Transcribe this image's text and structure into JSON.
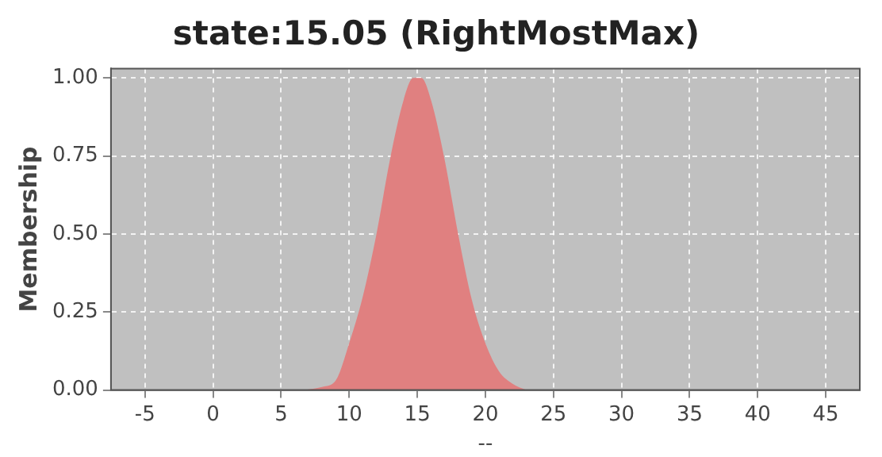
{
  "chart_data": {
    "type": "area",
    "title": "state:15.05 (RightMostMax)",
    "xlabel": "--",
    "ylabel": "Membership",
    "x": [
      6.7,
      8,
      9,
      10,
      11,
      12,
      13,
      14,
      14.7,
      15.3,
      16,
      17,
      18,
      19,
      20,
      21,
      22,
      23
    ],
    "series": [
      {
        "color": "#e08080",
        "values": [
          0,
          0.01,
          0.03,
          0.15,
          0.3,
          0.5,
          0.74,
          0.93,
          1,
          1,
          0.93,
          0.74,
          0.5,
          0.29,
          0.15,
          0.06,
          0.02,
          0
        ]
      }
    ],
    "xlim": [
      -7.5,
      47.5
    ],
    "xticks": [
      -5,
      0,
      5,
      10,
      15,
      20,
      25,
      30,
      35,
      40,
      45
    ],
    "ylim": [
      0,
      1.03
    ],
    "yticks": [
      {
        "value": 0,
        "label": "0.00"
      },
      {
        "value": 0.25,
        "label": "0.25"
      },
      {
        "value": 0.5,
        "label": "0.50"
      },
      {
        "value": 0.75,
        "label": "0.75"
      },
      {
        "value": 1,
        "label": "1.00"
      }
    ],
    "grid": true,
    "legend": false,
    "marker": "none"
  }
}
